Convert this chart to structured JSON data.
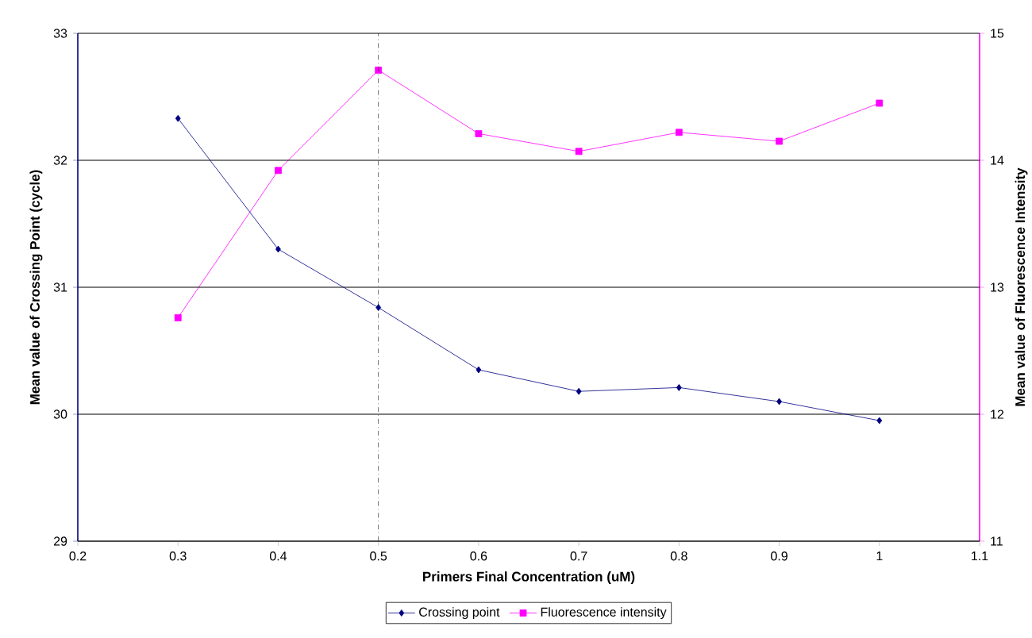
{
  "chart_data": {
    "type": "line",
    "xlabel": "Primers Final Concentration (uM)",
    "ylabel": "Mean value of Crossing Point (cycle)",
    "y2label": "Mean value of Fluorescence Intensity",
    "x": [
      0.3,
      0.4,
      0.5,
      0.6,
      0.7,
      0.8,
      0.9,
      1.0
    ],
    "series": [
      {
        "name": "Crossing point",
        "color": "#000080",
        "marker": "diamond",
        "values": [
          32.33,
          31.3,
          30.84,
          30.35,
          30.18,
          30.21,
          30.1,
          29.95
        ]
      },
      {
        "name": "Fluorescence intensity",
        "color": "#ff00ff",
        "marker": "square",
        "axis": "y2",
        "values": [
          12.76,
          13.92,
          14.71,
          14.21,
          14.07,
          14.22,
          14.15,
          14.45
        ]
      }
    ],
    "xlim": [
      0.2,
      1.1
    ],
    "xticks": [
      0.2,
      0.3,
      0.4,
      0.5,
      0.6,
      0.7,
      0.8,
      0.9,
      1,
      1.1
    ],
    "ylim": [
      29,
      33
    ],
    "yticks": [
      29,
      30,
      31,
      32,
      33
    ],
    "y2lim": [
      11,
      15
    ],
    "y2ticks": [
      11,
      12,
      13,
      14,
      15
    ],
    "ref_lines": [
      {
        "axis": "x",
        "value": 0.5,
        "color": "#404040",
        "line_style": "dashdot"
      }
    ],
    "grid": "y",
    "legend": "bottom",
    "line_style": "solid"
  }
}
